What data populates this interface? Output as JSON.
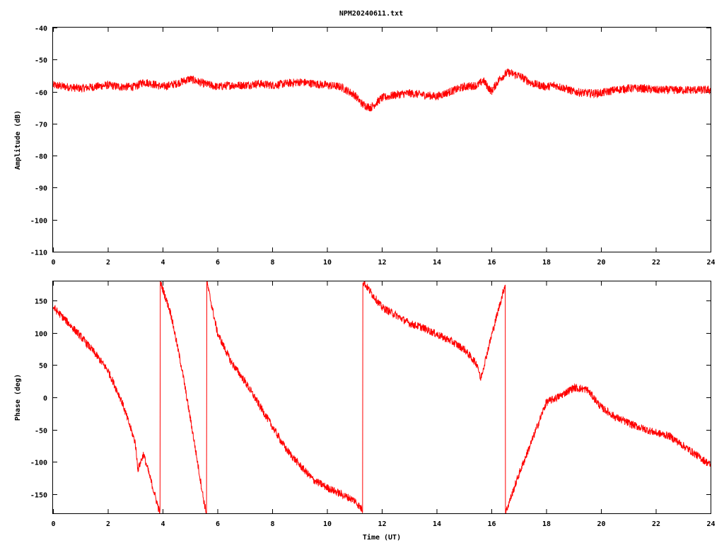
{
  "title": "NPM20240611.txt",
  "chart_data": [
    {
      "type": "line",
      "xlabel": "",
      "ylabel": "Amplitude (dB)",
      "xlim": [
        0,
        24
      ],
      "ylim": [
        -110,
        -40
      ],
      "xticks": [
        "0",
        "2",
        "4",
        "6",
        "8",
        "10",
        "12",
        "14",
        "16",
        "18",
        "20",
        "22",
        "24"
      ],
      "yticks": [
        "-40",
        "-50",
        "-60",
        "-70",
        "-80",
        "-90",
        "-100",
        "-110"
      ],
      "series": [
        {
          "color": "#ff0000",
          "x": [
            0,
            0.5,
            1,
            1.5,
            2,
            2.5,
            3,
            3.3,
            3.6,
            4,
            4.5,
            5,
            5.5,
            6,
            6.5,
            7,
            7.5,
            8,
            8.5,
            9,
            9.5,
            10,
            10.5,
            11,
            11.3,
            11.6,
            12,
            12.5,
            13,
            13.5,
            14,
            14.5,
            15,
            15.5,
            15.7,
            16,
            16.3,
            16.6,
            17,
            17.5,
            18,
            18.3,
            18.7,
            19,
            19.5,
            20,
            20.5,
            21,
            21.5,
            22,
            22.5,
            23,
            23.5,
            24
          ],
          "values": [
            -58,
            -58.5,
            -59,
            -58.5,
            -58,
            -58.5,
            -58.5,
            -57,
            -57.5,
            -58.5,
            -57.5,
            -56,
            -57.5,
            -58.5,
            -58,
            -58,
            -57.5,
            -58,
            -57.5,
            -57,
            -57.5,
            -58,
            -58.5,
            -61,
            -64,
            -65,
            -62,
            -61,
            -60.5,
            -61,
            -61.5,
            -60,
            -58.5,
            -58,
            -56.5,
            -60,
            -56,
            -54,
            -55,
            -57.5,
            -58.5,
            -58,
            -59,
            -60,
            -60.5,
            -60.5,
            -59.5,
            -59,
            -59,
            -59.5,
            -59.5,
            -59.5,
            -59.5,
            -59.5
          ],
          "noise": 1.3
        }
      ]
    },
    {
      "type": "line",
      "xlabel": "Time (UT)",
      "ylabel": "Phase (deg)",
      "xlim": [
        0,
        24
      ],
      "ylim": [
        -180,
        180
      ],
      "xticks": [
        "0",
        "2",
        "4",
        "6",
        "8",
        "10",
        "12",
        "14",
        "16",
        "18",
        "20",
        "22",
        "24"
      ],
      "yticks": [
        "150",
        "100",
        "50",
        "0",
        "-50",
        "-100",
        "-150"
      ],
      "series": [
        {
          "color": "#ff0000",
          "x": [
            0,
            0.5,
            1,
            1.5,
            2,
            2.5,
            3,
            3.1,
            3.3,
            3.5,
            3.9,
            3.91,
            4.3,
            4.7,
            5.1,
            5.5,
            5.6,
            5.61,
            6,
            6.5,
            7,
            7.5,
            8,
            8.5,
            9,
            9.5,
            10,
            10.5,
            11,
            11.3,
            11.31,
            12,
            12.5,
            13,
            13.5,
            14,
            14.5,
            15,
            15.5,
            15.6,
            16,
            16.5,
            16.51,
            17,
            17.5,
            18,
            18.5,
            19,
            19.5,
            20,
            20.5,
            21,
            21.5,
            22,
            22.5,
            23,
            23.5,
            24
          ],
          "values": [
            140,
            118,
            95,
            70,
            42,
            -5,
            -70,
            -112,
            -88,
            -118,
            -180,
            180,
            130,
            45,
            -55,
            -160,
            -180,
            180,
            100,
            55,
            25,
            -10,
            -45,
            -80,
            -105,
            -128,
            -140,
            -150,
            -160,
            -175,
            180,
            140,
            128,
            115,
            108,
            98,
            88,
            75,
            50,
            28,
            95,
            175,
            -180,
            -120,
            -65,
            -8,
            2,
            15,
            12,
            -15,
            -30,
            -40,
            -48,
            -55,
            -60,
            -75,
            -90,
            -105
          ],
          "noise": 6
        }
      ]
    }
  ]
}
